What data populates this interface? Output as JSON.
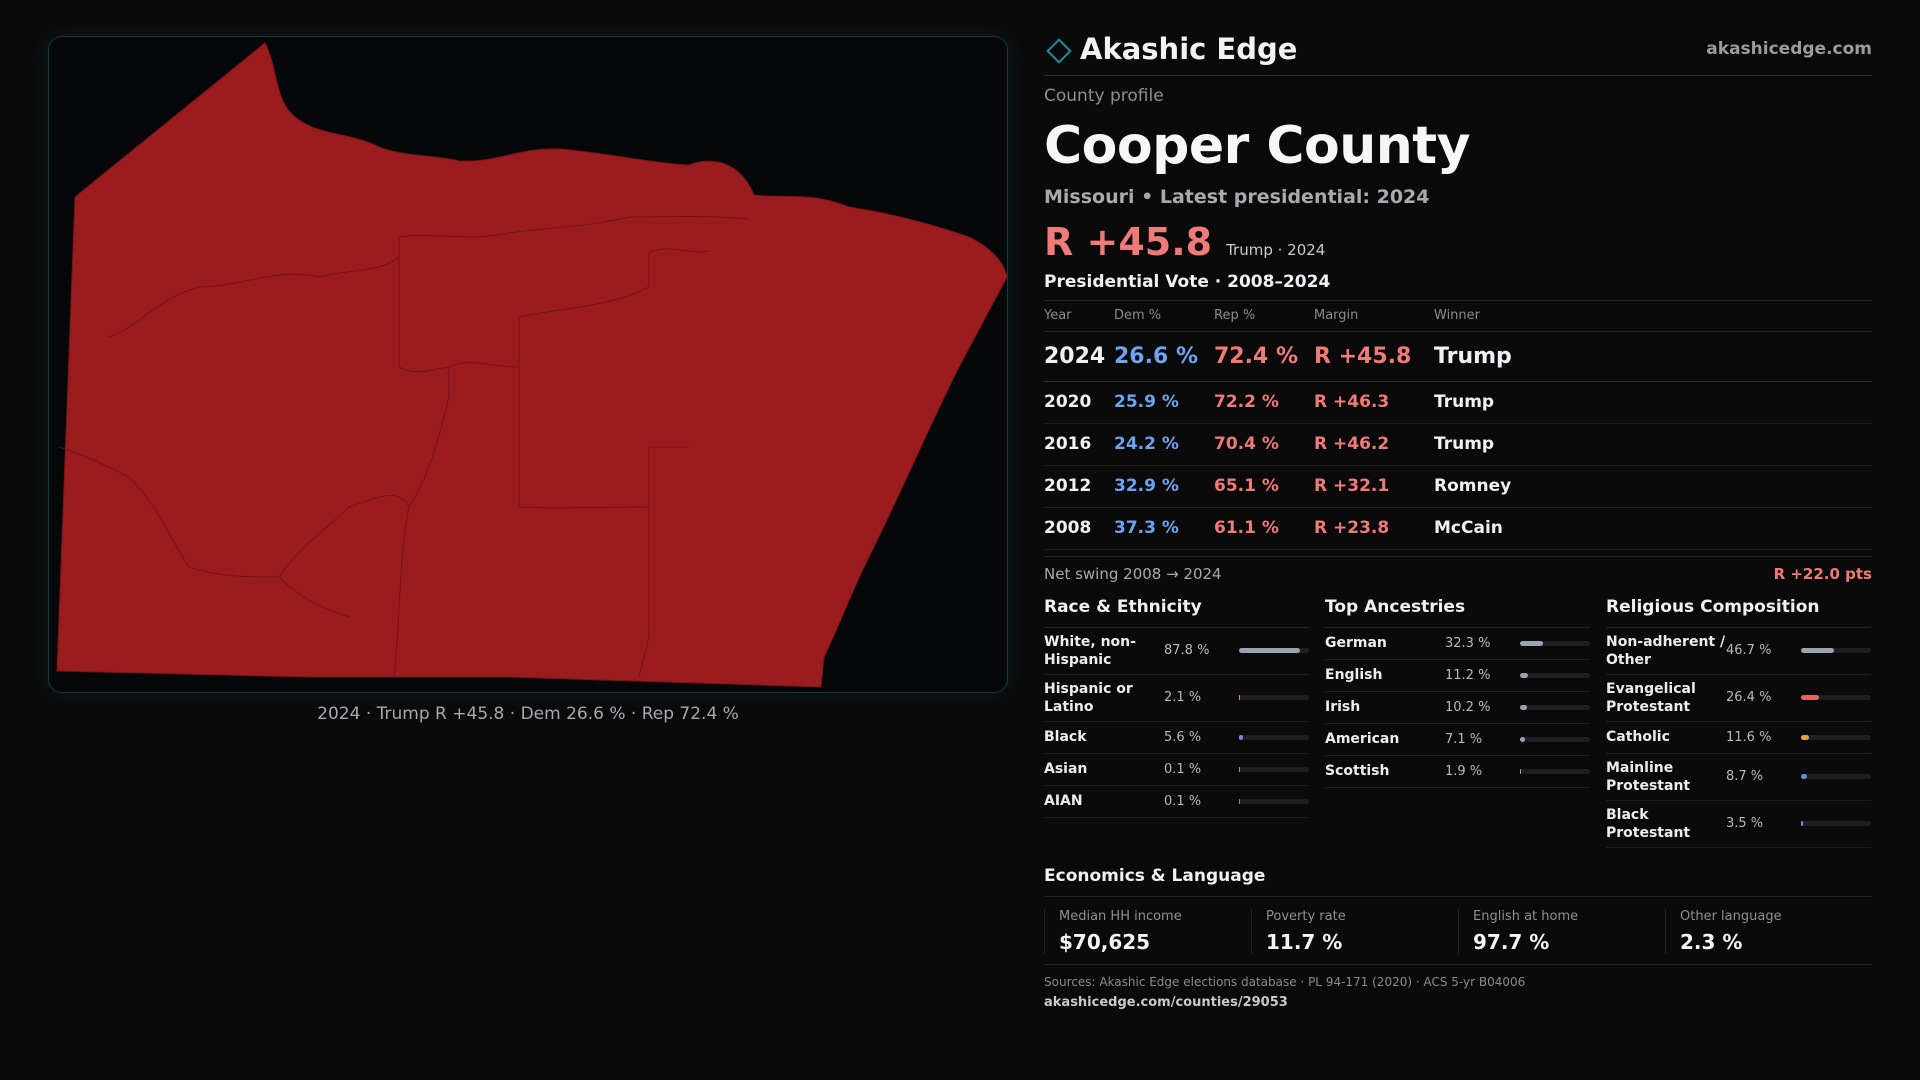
{
  "map": {
    "caption": "2024 · Trump R +45.8 · Dem 26.6 % · Rep 72.4 %",
    "fill_color": "#9b1c1f",
    "border_color": "#7a1418"
  },
  "header": {
    "brand_name": "Akashic Edge",
    "brand_icon": "diamond-logo-icon",
    "brand_url": "akashicedge.com"
  },
  "profile": {
    "eyebrow": "County profile",
    "title": "Cooper County",
    "subtitle": "Missouri • Latest presidential: 2024",
    "headline_margin": "R +45.8",
    "headline_note": "Trump · 2024"
  },
  "vote": {
    "title": "Presidential Vote · 2008–2024",
    "columns": [
      "Year",
      "Dem %",
      "Rep %",
      "Margin",
      "Winner"
    ],
    "rows": [
      {
        "year": "2024",
        "dem": "26.6 %",
        "rep": "72.4 %",
        "margin": "R +45.8",
        "winner": "Trump"
      },
      {
        "year": "2020",
        "dem": "25.9 %",
        "rep": "72.2 %",
        "margin": "R +46.3",
        "winner": "Trump"
      },
      {
        "year": "2016",
        "dem": "24.2 %",
        "rep": "70.4 %",
        "margin": "R +46.2",
        "winner": "Trump"
      },
      {
        "year": "2012",
        "dem": "32.9 %",
        "rep": "65.1 %",
        "margin": "R +32.1",
        "winner": "Romney"
      },
      {
        "year": "2008",
        "dem": "37.3 %",
        "rep": "61.1 %",
        "margin": "R +23.8",
        "winner": "McCain"
      }
    ],
    "swing_label": "Net swing 2008 → 2024",
    "swing_value": "R +22.0 pts"
  },
  "race": {
    "title": "Race & Ethnicity",
    "rows": [
      {
        "label": "White, non-Hispanic",
        "value": "87.8 %",
        "pct": 87.8,
        "color": "#9aa3b2"
      },
      {
        "label": "Hispanic or Latino",
        "value": "2.1 %",
        "pct": 2.1,
        "color": "#e0a33a"
      },
      {
        "label": "Black",
        "value": "5.6 %",
        "pct": 5.6,
        "color": "#8b7fe0"
      },
      {
        "label": "Asian",
        "value": "0.1 %",
        "pct": 0.1,
        "color": "#5fb3a0"
      },
      {
        "label": "AIAN",
        "value": "0.1 %",
        "pct": 0.1,
        "color": "#c07050"
      }
    ]
  },
  "ancestry": {
    "title": "Top Ancestries",
    "rows": [
      {
        "label": "German",
        "value": "32.3 %",
        "pct": 32.3,
        "color": "#9aa3b2"
      },
      {
        "label": "English",
        "value": "11.2 %",
        "pct": 11.2,
        "color": "#9aa3b2"
      },
      {
        "label": "Irish",
        "value": "10.2 %",
        "pct": 10.2,
        "color": "#9aa3b2"
      },
      {
        "label": "American",
        "value": "7.1 %",
        "pct": 7.1,
        "color": "#9aa3b2"
      },
      {
        "label": "Scottish",
        "value": "1.9 %",
        "pct": 1.9,
        "color": "#9aa3b2"
      }
    ]
  },
  "religion": {
    "title": "Religious Composition",
    "rows": [
      {
        "label": "Non-adherent / Other",
        "value": "46.7 %",
        "pct": 46.7,
        "color": "#9aa3b2"
      },
      {
        "label": "Evangelical Protestant",
        "value": "26.4 %",
        "pct": 26.4,
        "color": "#e06666"
      },
      {
        "label": "Catholic",
        "value": "11.6 %",
        "pct": 11.6,
        "color": "#e0a33a"
      },
      {
        "label": "Mainline Protestant",
        "value": "8.7 %",
        "pct": 8.7,
        "color": "#5b8fe0"
      },
      {
        "label": "Black Protestant",
        "value": "3.5 %",
        "pct": 3.5,
        "color": "#8b7fe0"
      }
    ]
  },
  "economics": {
    "title": "Economics & Language",
    "cells": [
      {
        "label": "Median HH income",
        "value": "$70,625"
      },
      {
        "label": "Poverty rate",
        "value": "11.7 %"
      },
      {
        "label": "English at home",
        "value": "97.7 %"
      },
      {
        "label": "Other language",
        "value": "2.3 %"
      }
    ]
  },
  "footer": {
    "sources": "Sources: Akashic Edge elections database · PL 94-171 (2020) · ACS 5-yr B04006",
    "url": "akashicedge.com/counties/29053"
  }
}
